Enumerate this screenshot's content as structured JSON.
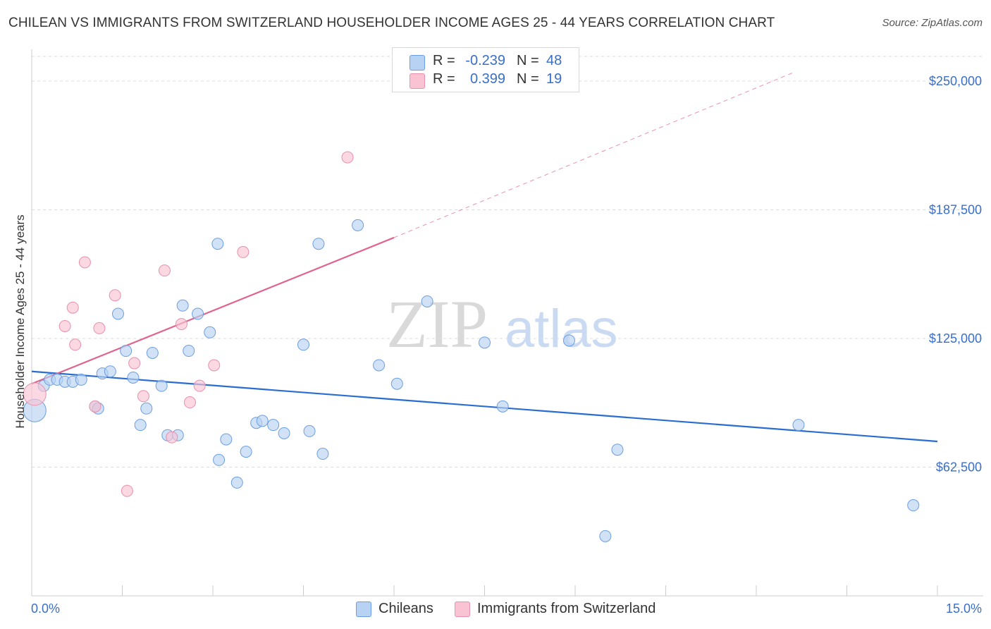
{
  "title": "CHILEAN VS IMMIGRANTS FROM SWITZERLAND HOUSEHOLDER INCOME AGES 25 - 44 YEARS CORRELATION CHART",
  "source": "Source: ZipAtlas.com",
  "watermark": {
    "zip": "ZIP",
    "atlas": "atlas"
  },
  "legend_top": [
    {
      "r_label": "R =",
      "r_value": "-0.239",
      "n_label": "N =",
      "n_value": "48"
    },
    {
      "r_label": "R =",
      "r_value": "0.399",
      "n_label": "N =",
      "n_value": "19"
    }
  ],
  "legend_bottom": [
    "Chileans",
    "Immigrants from Switzerland"
  ],
  "colors": {
    "blue_fill": "#b8d2f3",
    "blue_stroke": "#6b9ee0",
    "blue_line": "#2a6dd0",
    "pink_fill": "#f9c3d3",
    "pink_stroke": "#e890ac",
    "pink_line": "#e0648e",
    "tick_label": "#3a6fc9",
    "grid": "#dddddd"
  },
  "chart_data": {
    "type": "scatter",
    "title": "CHILEAN VS IMMIGRANTS FROM SWITZERLAND HOUSEHOLDER INCOME AGES 25 - 44 YEARS CORRELATION CHART",
    "xlabel": "",
    "ylabel": "Householder Income Ages 25 - 44 years",
    "xlim": [
      0,
      15
    ],
    "ylim": [
      0,
      262000
    ],
    "x_tick_labels": [
      "0.0%",
      "15.0%"
    ],
    "y_ticks": [
      62500,
      125000,
      187500,
      250000
    ],
    "y_tick_labels": [
      "$62,500",
      "$125,000",
      "$187,500",
      "$250,000"
    ],
    "grid": "horizontal dashed",
    "legend_position": "top-center and bottom",
    "series": [
      {
        "name": "Chileans",
        "R": -0.239,
        "N": 48,
        "trend": {
          "x": [
            0,
            15
          ],
          "y": [
            109000,
            75000
          ]
        },
        "points": [
          {
            "x": 0.05,
            "y": 90000,
            "big": true
          },
          {
            "x": 0.2,
            "y": 102000
          },
          {
            "x": 0.3,
            "y": 105000
          },
          {
            "x": 0.42,
            "y": 105000
          },
          {
            "x": 0.55,
            "y": 104000
          },
          {
            "x": 0.68,
            "y": 104000
          },
          {
            "x": 0.82,
            "y": 105000
          },
          {
            "x": 1.05,
            "y": 92000
          },
          {
            "x": 1.1,
            "y": 91000
          },
          {
            "x": 1.17,
            "y": 108000
          },
          {
            "x": 1.3,
            "y": 109000
          },
          {
            "x": 1.43,
            "y": 137000
          },
          {
            "x": 1.56,
            "y": 119000
          },
          {
            "x": 1.68,
            "y": 106000
          },
          {
            "x": 1.8,
            "y": 83000
          },
          {
            "x": 1.9,
            "y": 91000
          },
          {
            "x": 2.0,
            "y": 118000
          },
          {
            "x": 2.15,
            "y": 102000
          },
          {
            "x": 2.25,
            "y": 78000
          },
          {
            "x": 2.42,
            "y": 78000
          },
          {
            "x": 2.5,
            "y": 141000
          },
          {
            "x": 2.6,
            "y": 119000
          },
          {
            "x": 2.75,
            "y": 137000
          },
          {
            "x": 2.95,
            "y": 128000
          },
          {
            "x": 3.08,
            "y": 171000
          },
          {
            "x": 3.22,
            "y": 76000
          },
          {
            "x": 3.1,
            "y": 66000
          },
          {
            "x": 3.4,
            "y": 55000
          },
          {
            "x": 3.55,
            "y": 70000
          },
          {
            "x": 3.72,
            "y": 84000
          },
          {
            "x": 3.82,
            "y": 85000
          },
          {
            "x": 4.0,
            "y": 83000
          },
          {
            "x": 4.18,
            "y": 79000
          },
          {
            "x": 4.5,
            "y": 122000
          },
          {
            "x": 4.6,
            "y": 80000
          },
          {
            "x": 4.75,
            "y": 171000
          },
          {
            "x": 4.82,
            "y": 69000
          },
          {
            "x": 5.4,
            "y": 180000
          },
          {
            "x": 5.75,
            "y": 112000
          },
          {
            "x": 6.05,
            "y": 103000
          },
          {
            "x": 6.55,
            "y": 143000
          },
          {
            "x": 7.5,
            "y": 123000
          },
          {
            "x": 7.8,
            "y": 92000
          },
          {
            "x": 8.9,
            "y": 124000
          },
          {
            "x": 9.5,
            "y": 29000
          },
          {
            "x": 9.7,
            "y": 71000
          },
          {
            "x": 12.7,
            "y": 83000
          },
          {
            "x": 14.6,
            "y": 44000
          }
        ]
      },
      {
        "name": "Immigrants from Switzerland",
        "R": 0.399,
        "N": 19,
        "trend": {
          "x": [
            0,
            6.0
          ],
          "y": [
            103000,
            174000
          ]
        },
        "trend_extension": {
          "x": [
            6.0,
            12.6
          ],
          "y": [
            174000,
            254000
          ]
        },
        "points": [
          {
            "x": 0.05,
            "y": 98000,
            "big": true
          },
          {
            "x": 0.55,
            "y": 131000
          },
          {
            "x": 0.88,
            "y": 162000
          },
          {
            "x": 0.68,
            "y": 140000
          },
          {
            "x": 0.72,
            "y": 122000
          },
          {
            "x": 1.05,
            "y": 92000
          },
          {
            "x": 1.12,
            "y": 130000
          },
          {
            "x": 1.38,
            "y": 146000
          },
          {
            "x": 1.58,
            "y": 51000
          },
          {
            "x": 1.7,
            "y": 113000
          },
          {
            "x": 1.85,
            "y": 97000
          },
          {
            "x": 2.2,
            "y": 158000
          },
          {
            "x": 2.32,
            "y": 77000
          },
          {
            "x": 2.48,
            "y": 132000
          },
          {
            "x": 2.62,
            "y": 94000
          },
          {
            "x": 2.78,
            "y": 102000
          },
          {
            "x": 3.5,
            "y": 167000
          },
          {
            "x": 3.02,
            "y": 112000
          },
          {
            "x": 5.23,
            "y": 213000
          }
        ]
      }
    ]
  }
}
